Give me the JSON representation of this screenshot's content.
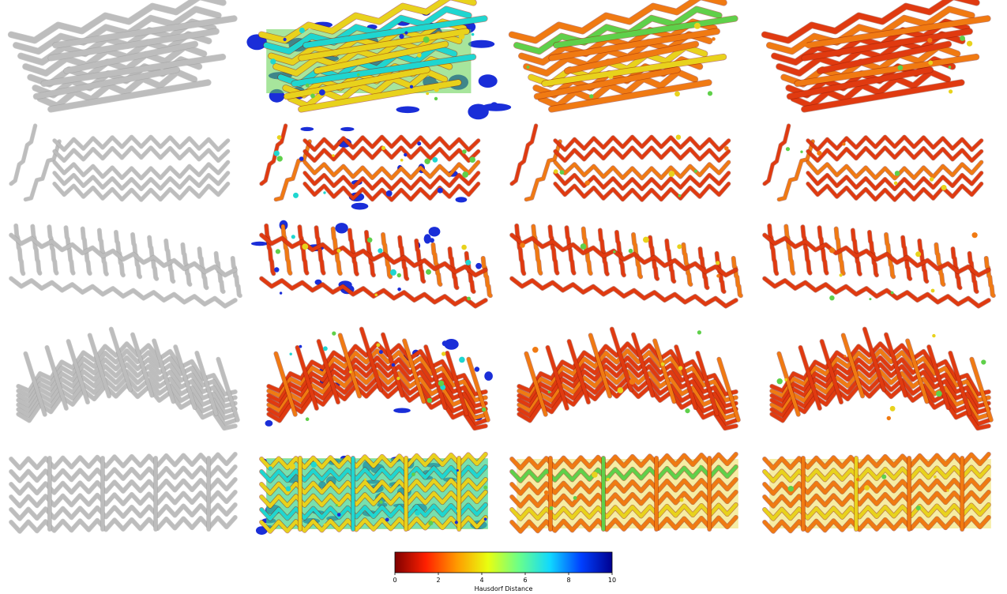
{
  "figure": {
    "columns": [
      {
        "style": "gray"
      },
      {
        "style": "noisy-heatmap"
      },
      {
        "style": "mid-heatmap"
      },
      {
        "style": "low-heatmap"
      }
    ],
    "rows": [
      {
        "shape": "tilted-short-stent"
      },
      {
        "shape": "sparse-lattice-stent"
      },
      {
        "shape": "curved-long-stent"
      },
      {
        "shape": "arched-stent"
      },
      {
        "shape": "straight-cylindrical-stent"
      }
    ],
    "mesh_colors": {
      "gray": "#bdbdbd",
      "red": "#e03a10",
      "orange": "#f07a12",
      "yellow": "#e8d21c",
      "green": "#5fd04a",
      "cyan": "#1fd6d0",
      "blue": "#1a2ed8"
    }
  },
  "colorbar": {
    "label": "Hausdorf Distance",
    "min": 0,
    "max": 10,
    "tick_labels": [
      "0",
      "2",
      "4",
      "6",
      "8",
      "10"
    ],
    "tick_values": [
      0,
      2,
      4,
      6,
      8,
      10
    ],
    "colormap": "jet_r",
    "stops": [
      "#7f0000",
      "#ff2000",
      "#ff9a00",
      "#e8ff10",
      "#6aff8a",
      "#10d8ff",
      "#0040ff",
      "#00008f"
    ]
  }
}
